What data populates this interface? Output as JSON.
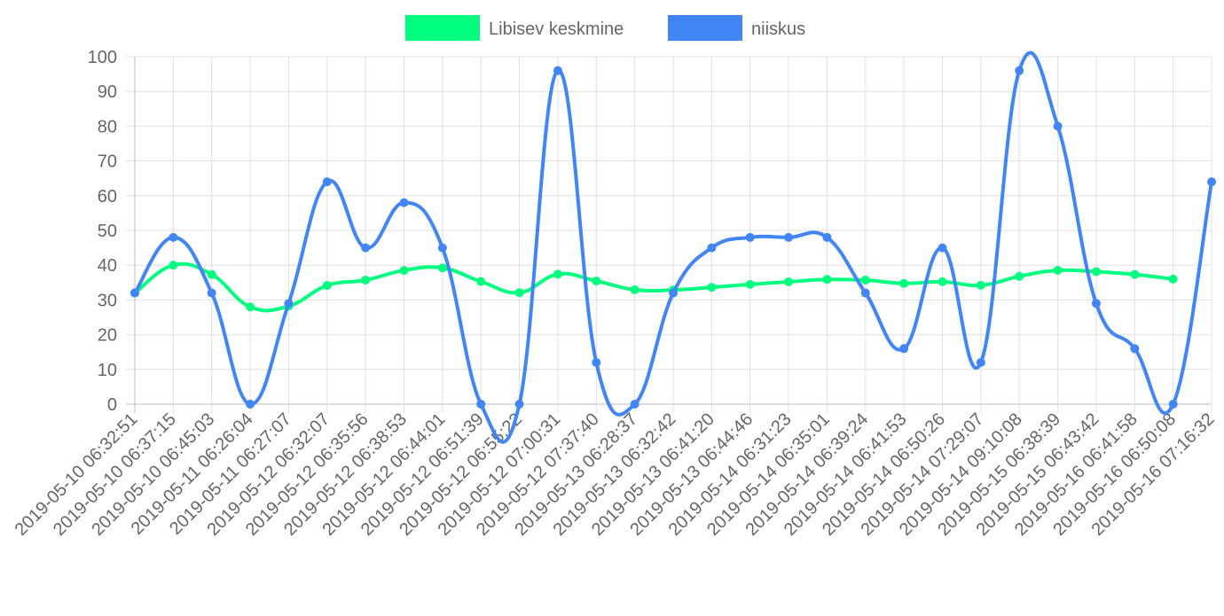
{
  "chart_data": {
    "type": "line",
    "categories": [
      "2019-05-10 06:32:51",
      "2019-05-10 06:37:15",
      "2019-05-10 06:45:03",
      "2019-05-11 06:26:04",
      "2019-05-11 06:27:07",
      "2019-05-12 06:32:07",
      "2019-05-12 06:35:56",
      "2019-05-12 06:38:53",
      "2019-05-12 06:44:01",
      "2019-05-12 06:51:39",
      "2019-05-12 06:55:22",
      "2019-05-12 07:00:31",
      "2019-05-12 07:37:40",
      "2019-05-13 06:28:37",
      "2019-05-13 06:32:42",
      "2019-05-13 06:41:20",
      "2019-05-13 06:44:46",
      "2019-05-14 06:31:23",
      "2019-05-14 06:35:01",
      "2019-05-14 06:39:24",
      "2019-05-14 06:41:53",
      "2019-05-14 06:50:26",
      "2019-05-14 07:29:07",
      "2019-05-14 09:10:08",
      "2019-05-15 06:38:39",
      "2019-05-15 06:43:42",
      "2019-05-16 06:41:58",
      "2019-05-16 06:50:08",
      "2019-05-16 07:16:32"
    ],
    "series": [
      {
        "name": "Libisev keskmine",
        "color": "#00ff7f",
        "values": [
          32,
          40,
          37.33,
          28,
          28.2,
          34.17,
          35.71,
          38.5,
          39.22,
          35.3,
          32.09,
          37.42,
          35.46,
          32.93,
          32.87,
          33.63,
          34.47,
          35.22,
          35.89,
          35.7,
          34.76,
          35.23,
          34.22,
          36.79,
          38.52,
          38.15,
          37.33,
          36.0,
          null
        ]
      },
      {
        "name": "niiskus",
        "color": "#4285f4",
        "values": [
          32,
          48,
          32,
          0,
          29,
          64,
          45,
          58,
          45,
          0,
          0,
          96,
          12,
          0,
          32,
          45,
          48,
          48,
          48,
          32,
          16,
          45,
          12,
          96,
          80,
          29,
          16,
          0,
          64
        ]
      }
    ],
    "ylim": [
      0,
      100
    ],
    "yticks": [
      0,
      10,
      20,
      30,
      40,
      50,
      60,
      70,
      80,
      90,
      100
    ],
    "grid": true,
    "legend": "top"
  }
}
